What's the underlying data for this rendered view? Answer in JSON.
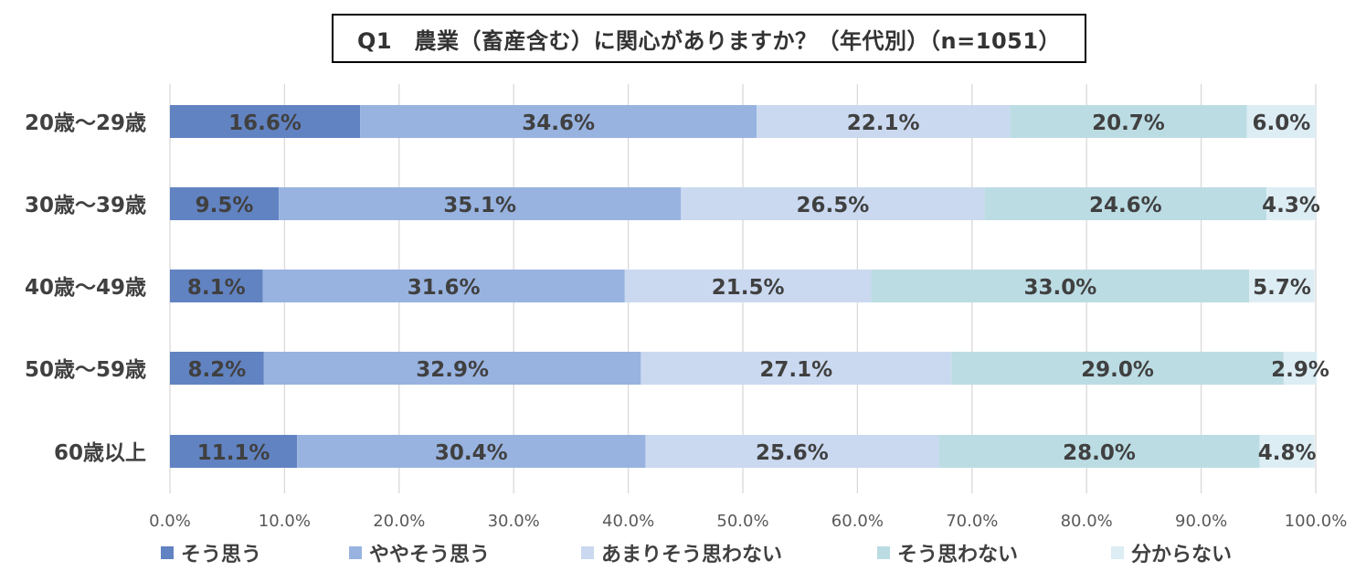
{
  "chart_data": {
    "type": "bar",
    "orientation": "horizontal",
    "stacked": true,
    "title": "Q1　農業（畜産含む）に関心がありますか？（年代別）（n=1051）",
    "categories": [
      "20歳～29歳",
      "30歳～39歳",
      "40歳～49歳",
      "50歳～59歳",
      "60歳以上"
    ],
    "series": [
      {
        "name": "そう思う",
        "color": "#6283c2",
        "values": [
          16.6,
          9.5,
          8.1,
          8.2,
          11.1
        ],
        "labels": [
          "16.6%",
          "9.5%",
          "8.1%",
          "8.2%",
          "11.1%"
        ]
      },
      {
        "name": "ややそう思う",
        "color": "#98b3e0",
        "values": [
          34.6,
          35.1,
          31.6,
          32.9,
          30.4
        ],
        "labels": [
          "34.6%",
          "35.1%",
          "31.6%",
          "32.9%",
          "30.4%"
        ]
      },
      {
        "name": "あまりそう思わない",
        "color": "#cad9f0",
        "values": [
          22.1,
          26.5,
          21.5,
          27.1,
          25.6
        ],
        "labels": [
          "22.1%",
          "26.5%",
          "21.5%",
          "27.1%",
          "25.6%"
        ]
      },
      {
        "name": "そう思わない",
        "color": "#bcdce4",
        "values": [
          20.7,
          24.6,
          33.0,
          29.0,
          28.0
        ],
        "labels": [
          "20.7%",
          "24.6%",
          "33.0%",
          "29.0%",
          "28.0%"
        ]
      },
      {
        "name": "分からない",
        "color": "#ddedf4",
        "values": [
          6.0,
          4.3,
          5.7,
          2.9,
          4.8
        ],
        "labels": [
          "6.0%",
          "4.3%",
          "5.7%",
          "2.9%",
          "4.8%"
        ]
      }
    ],
    "xlim": [
      0,
      100
    ],
    "x_ticks": [
      "0.0%",
      "10.0%",
      "20.0%",
      "30.0%",
      "40.0%",
      "50.0%",
      "60.0%",
      "70.0%",
      "80.0%",
      "90.0%",
      "100.0%"
    ],
    "grid": true,
    "legend": "bottom"
  }
}
